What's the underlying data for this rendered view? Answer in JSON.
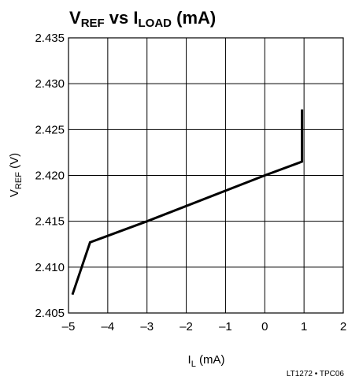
{
  "chart_data": {
    "type": "line",
    "title": {
      "v_main": "V",
      "v_sub": "REF",
      "middle": " vs I",
      "i_sub": "LOAD",
      "tail": " (mA)"
    },
    "xlabel": {
      "main": "I",
      "sub": "L",
      "tail": " (mA)"
    },
    "ylabel": {
      "main": "V",
      "sub": "REF",
      "tail": " (V)"
    },
    "xlim": [
      -5,
      2
    ],
    "ylim": [
      2.405,
      2.435
    ],
    "x_ticks": [
      -5,
      -4,
      -3,
      -2,
      -1,
      0,
      1,
      2
    ],
    "x_tick_labels": [
      "–5",
      "–4",
      "–3",
      "–2",
      "–1",
      "0",
      "1",
      "2"
    ],
    "y_ticks": [
      2.405,
      2.41,
      2.415,
      2.42,
      2.425,
      2.43,
      2.435
    ],
    "y_tick_labels": [
      "2.405",
      "2.410",
      "2.415",
      "2.420",
      "2.425",
      "2.430",
      "2.435"
    ],
    "grid": true,
    "series": [
      {
        "x": [
          -4.9,
          -4.45,
          -3.0,
          0.0,
          0.95,
          0.95
        ],
        "y": [
          2.407,
          2.4127,
          2.415,
          2.42,
          2.4215,
          2.4272
        ]
      }
    ],
    "footnote": "LT1272 • TPC06"
  }
}
